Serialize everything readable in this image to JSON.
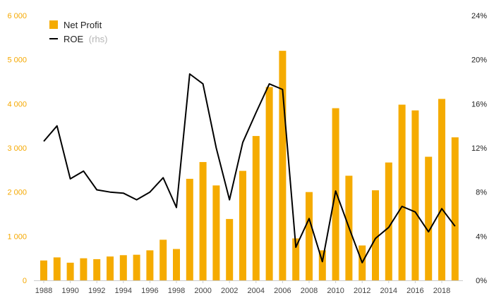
{
  "chart_data": {
    "type": "bar+line",
    "title": "",
    "x": [
      1988,
      1989,
      1990,
      1991,
      1992,
      1993,
      1994,
      1995,
      1996,
      1997,
      1998,
      1999,
      2000,
      2001,
      2002,
      2003,
      2004,
      2005,
      2006,
      2007,
      2008,
      2009,
      2010,
      2011,
      2012,
      2013,
      2014,
      2015,
      2016,
      2017,
      2018,
      2019
    ],
    "x_tick_labels": [
      "1988",
      "1990",
      "1992",
      "1994",
      "1996",
      "1998",
      "2000",
      "2002",
      "2004",
      "2006",
      "2008",
      "2010",
      "2012",
      "2014",
      "2016",
      "2018"
    ],
    "series": [
      {
        "name": "Net Profit",
        "type": "bar",
        "axis": "left",
        "color": "#f5ab00",
        "values": [
          450,
          520,
          400,
          500,
          480,
          540,
          570,
          580,
          680,
          920,
          710,
          2300,
          2680,
          2150,
          1390,
          2480,
          3270,
          4380,
          5200,
          950,
          2000,
          680,
          3900,
          2370,
          790,
          2040,
          2670,
          3980,
          3850,
          2800,
          4110,
          3240
        ]
      },
      {
        "name": "ROE",
        "name_suffix": "(rhs)",
        "type": "line",
        "axis": "right",
        "color": "#000000",
        "values": [
          12.6,
          14.0,
          9.2,
          9.9,
          8.2,
          8.0,
          7.9,
          7.3,
          8.0,
          9.3,
          6.6,
          18.7,
          17.8,
          12.0,
          7.3,
          12.5,
          15.2,
          17.8,
          17.3,
          3.0,
          5.6,
          1.7,
          8.1,
          4.8,
          1.6,
          3.8,
          4.8,
          6.7,
          6.2,
          4.4,
          6.5,
          4.9
        ]
      }
    ],
    "left_axis": {
      "min": 0,
      "max": 6000,
      "ticks": [
        0,
        1000,
        2000,
        3000,
        4000,
        5000,
        6000
      ],
      "labels": [
        "0",
        "1 000",
        "2 000",
        "3 000",
        "4 000",
        "5 000",
        "6 000"
      ],
      "color": "#f5a800"
    },
    "right_axis": {
      "min": 0,
      "max": 24,
      "ticks": [
        0,
        4,
        8,
        12,
        16,
        20,
        24
      ],
      "labels": [
        "0%",
        "4%",
        "8%",
        "12%",
        "16%",
        "20%",
        "24%"
      ],
      "color": "#222222"
    },
    "grid": false,
    "legend_position": "top-left"
  }
}
